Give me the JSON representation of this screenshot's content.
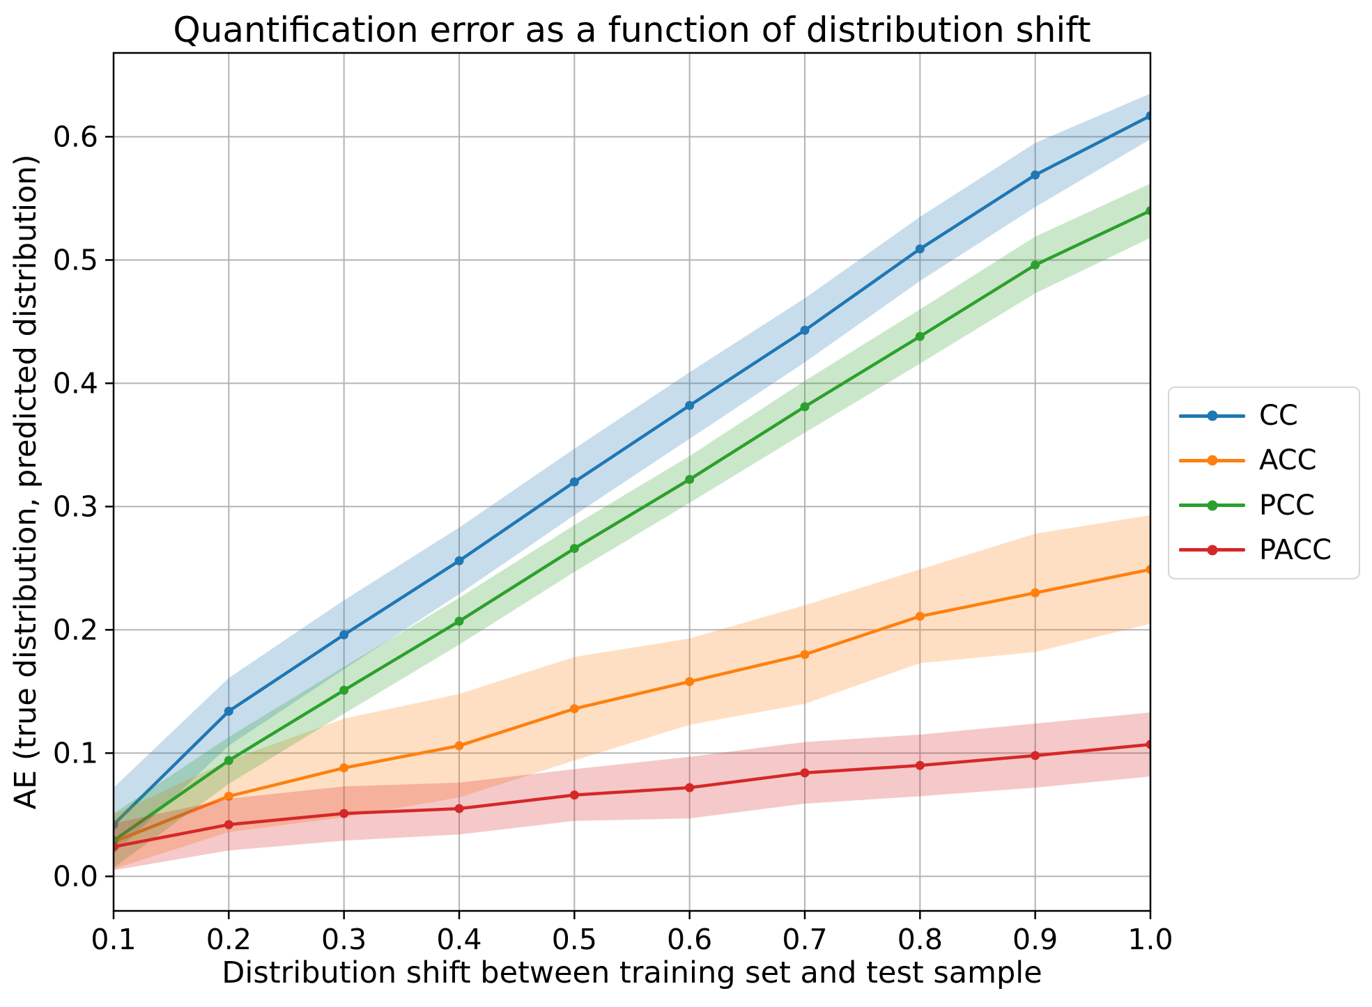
{
  "chart_data": {
    "type": "line",
    "title": "Quantification error as a function of distribution shift",
    "xlabel": "Distribution shift between training set and test sample",
    "ylabel": "AE (true distribution, predicted distribution)",
    "x": [
      0.1,
      0.2,
      0.3,
      0.4,
      0.5,
      0.6,
      0.7,
      0.8,
      0.9,
      1.0
    ],
    "xlim": [
      0.1,
      1.0
    ],
    "ylim": [
      -0.028,
      0.668
    ],
    "xticks": {
      "values": [
        0.1,
        0.2,
        0.3,
        0.4,
        0.5,
        0.6,
        0.7,
        0.8,
        0.9,
        1.0
      ],
      "labels": [
        "0.1",
        "0.2",
        "0.3",
        "0.4",
        "0.5",
        "0.6",
        "0.7",
        "0.8",
        "0.9",
        "1.0"
      ]
    },
    "yticks": {
      "values": [
        0.0,
        0.1,
        0.2,
        0.3,
        0.4,
        0.5,
        0.6
      ],
      "labels": [
        "0.0",
        "0.1",
        "0.2",
        "0.3",
        "0.4",
        "0.5",
        "0.6"
      ]
    },
    "grid": true,
    "legend_position": "outside-center-right",
    "marker": "circle",
    "band_alpha": 0.25,
    "colors": {
      "background": "#ffffff",
      "grid": "#b3b3b3",
      "spine": "#000000",
      "text": "#000000"
    },
    "series": [
      {
        "name": "CC",
        "color": "#1f77b4",
        "values": [
          0.042,
          0.134,
          0.196,
          0.256,
          0.32,
          0.382,
          0.443,
          0.509,
          0.569,
          0.617
        ],
        "band_low": [
          0.018,
          0.106,
          0.168,
          0.229,
          0.293,
          0.355,
          0.417,
          0.483,
          0.543,
          0.598
        ],
        "band_high": [
          0.072,
          0.161,
          0.224,
          0.283,
          0.347,
          0.409,
          0.469,
          0.535,
          0.595,
          0.635
        ]
      },
      {
        "name": "ACC",
        "color": "#ff7f0e",
        "values": [
          0.028,
          0.065,
          0.088,
          0.106,
          0.136,
          0.158,
          0.18,
          0.211,
          0.23,
          0.249
        ],
        "band_low": [
          0.006,
          0.036,
          0.048,
          0.064,
          0.094,
          0.123,
          0.14,
          0.173,
          0.182,
          0.205
        ],
        "band_high": [
          0.05,
          0.094,
          0.128,
          0.148,
          0.178,
          0.193,
          0.22,
          0.249,
          0.278,
          0.293
        ]
      },
      {
        "name": "PCC",
        "color": "#2ca02c",
        "values": [
          0.029,
          0.094,
          0.151,
          0.207,
          0.266,
          0.322,
          0.381,
          0.438,
          0.496,
          0.54
        ],
        "band_low": [
          0.007,
          0.075,
          0.132,
          0.188,
          0.247,
          0.303,
          0.36,
          0.416,
          0.473,
          0.518
        ],
        "band_high": [
          0.051,
          0.113,
          0.17,
          0.226,
          0.285,
          0.341,
          0.402,
          0.46,
          0.519,
          0.562
        ]
      },
      {
        "name": "PACC",
        "color": "#d62728",
        "values": [
          0.024,
          0.042,
          0.051,
          0.055,
          0.066,
          0.072,
          0.084,
          0.09,
          0.098,
          0.107
        ],
        "band_low": [
          0.005,
          0.021,
          0.029,
          0.034,
          0.045,
          0.047,
          0.059,
          0.065,
          0.072,
          0.081
        ],
        "band_high": [
          0.043,
          0.063,
          0.073,
          0.076,
          0.087,
          0.097,
          0.109,
          0.115,
          0.124,
          0.133
        ]
      }
    ]
  }
}
